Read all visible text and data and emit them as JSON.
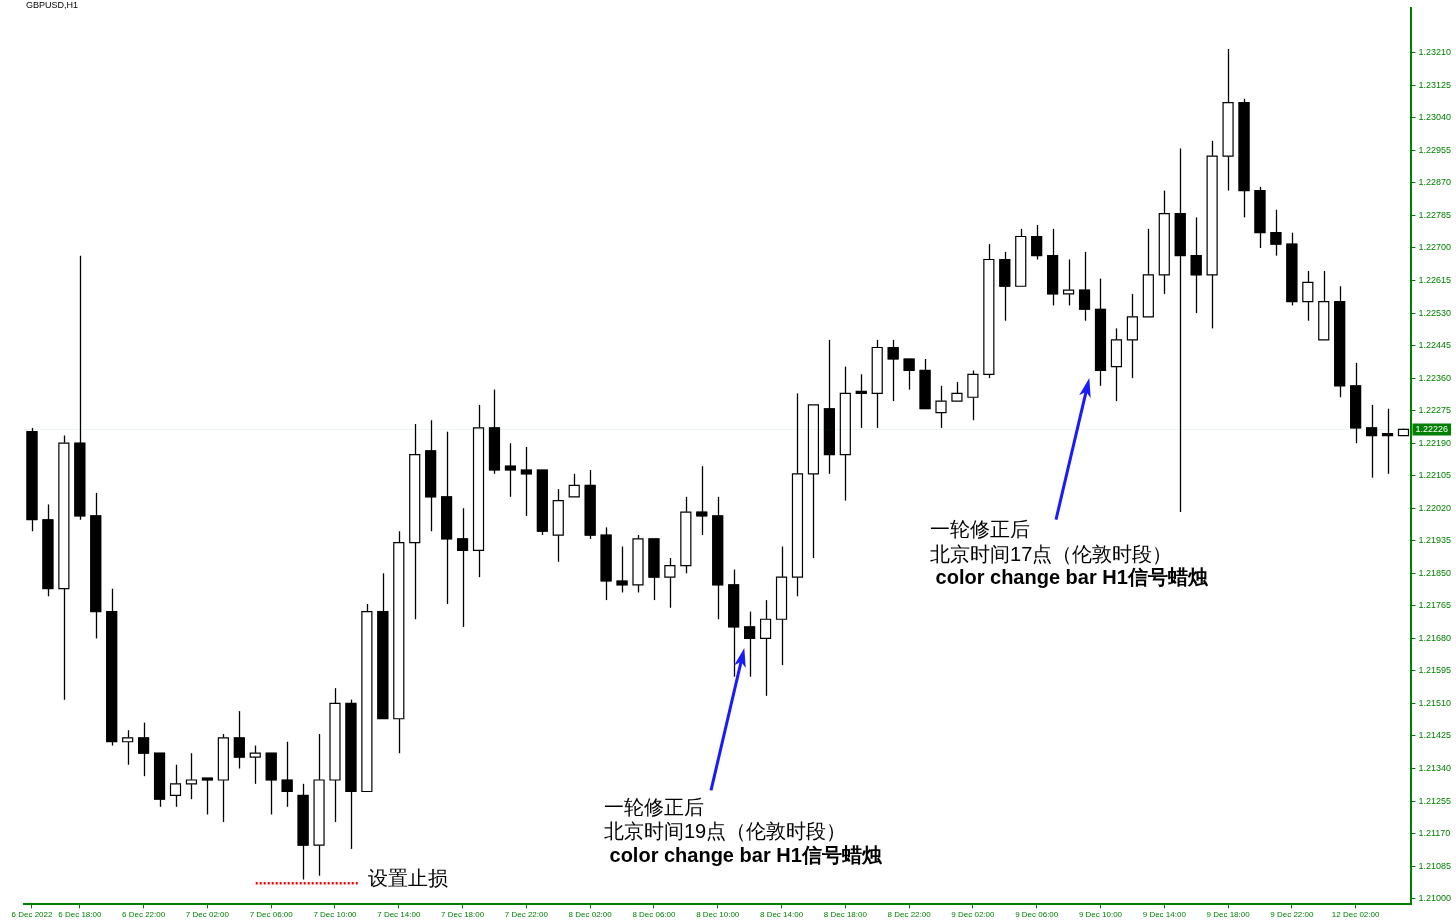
{
  "chart_data": {
    "type": "candlestick",
    "title": "GBPUSD,H1",
    "categories": [
      "6 Dec 2022",
      null,
      null,
      "6 Dec 18:00",
      null,
      null,
      null,
      "6 Dec 22:00",
      null,
      null,
      null,
      "7 Dec 02:00",
      null,
      null,
      null,
      "7 Dec 06:00",
      null,
      null,
      null,
      "7 Dec 10:00",
      null,
      null,
      null,
      "7 Dec 14:00",
      null,
      null,
      null,
      "7 Dec 18:00",
      null,
      null,
      null,
      "7 Dec 22:00",
      null,
      null,
      null,
      "8 Dec 02:00",
      null,
      null,
      null,
      "8 Dec 06:00",
      null,
      null,
      null,
      "8 Dec 10:00",
      null,
      null,
      null,
      "8 Dec 14:00",
      null,
      null,
      null,
      "8 Dec 18:00",
      null,
      null,
      null,
      "8 Dec 22:00",
      null,
      null,
      null,
      "9 Dec 02:00",
      null,
      null,
      null,
      "9 Dec 06:00",
      null,
      null,
      null,
      "9 Dec 10:00",
      null,
      null,
      null,
      "9 Dec 14:00",
      null,
      null,
      null,
      "9 Dec 18:00",
      null,
      null,
      null,
      "9 Dec 22:00",
      null,
      null,
      null,
      "12 Dec 02:00",
      null,
      null,
      null
    ],
    "ohlc": [
      [
        1.2222,
        1.2223,
        1.2196,
        1.2199
      ],
      [
        1.2199,
        1.2203,
        1.2179,
        1.2181
      ],
      [
        1.2181,
        1.2221,
        1.2152,
        1.2219
      ],
      [
        1.2219,
        1.2268,
        1.2199,
        1.22
      ],
      [
        1.22,
        1.2206,
        1.2168,
        1.2175
      ],
      [
        1.2175,
        1.2181,
        1.214,
        1.2141
      ],
      [
        1.2141,
        1.2144,
        1.2135,
        1.2142
      ],
      [
        1.2142,
        1.2146,
        1.2132,
        1.2138
      ],
      [
        1.2138,
        1.2138,
        1.2124,
        1.2126
      ],
      [
        1.2127,
        1.2135,
        1.2124,
        1.213
      ],
      [
        1.213,
        1.2138,
        1.2126,
        1.2131
      ],
      [
        1.2131,
        1.2131,
        1.2122,
        1.2131
      ],
      [
        1.2131,
        1.2143,
        1.212,
        1.2142
      ],
      [
        1.2142,
        1.2149,
        1.2134,
        1.2137
      ],
      [
        1.2137,
        1.214,
        1.213,
        1.2138
      ],
      [
        1.2138,
        1.2138,
        1.2122,
        1.2131
      ],
      [
        1.2131,
        1.2141,
        1.2124,
        1.2128
      ],
      [
        1.2127,
        1.213,
        1.2105,
        1.2114
      ],
      [
        1.2114,
        1.2143,
        1.2106,
        1.2131
      ],
      [
        1.2131,
        1.2155,
        1.212,
        1.2151
      ],
      [
        1.2151,
        1.2152,
        1.2113,
        1.2128
      ],
      [
        1.2128,
        1.2177,
        1.2128,
        1.2175
      ],
      [
        1.2175,
        1.2185,
        1.2147,
        1.2147
      ],
      [
        1.2147,
        1.2196,
        1.2138,
        1.2193
      ],
      [
        1.2193,
        1.2224,
        1.2173,
        1.2216
      ],
      [
        1.2217,
        1.2225,
        1.2196,
        1.2205
      ],
      [
        1.2205,
        1.2222,
        1.2177,
        1.2194
      ],
      [
        1.2194,
        1.2202,
        1.2171,
        1.2191
      ],
      [
        1.2191,
        1.2229,
        1.2184,
        1.2223
      ],
      [
        1.2223,
        1.2233,
        1.2211,
        1.2212
      ],
      [
        1.2213,
        1.2219,
        1.2205,
        1.2212
      ],
      [
        1.2212,
        1.2218,
        1.22,
        1.2211
      ],
      [
        1.2212,
        1.2212,
        1.2195,
        1.2196
      ],
      [
        1.2195,
        1.2207,
        1.2188,
        1.2204
      ],
      [
        1.2205,
        1.2211,
        1.2205,
        1.2208
      ],
      [
        1.2208,
        1.2212,
        1.2194,
        1.2195
      ],
      [
        1.2195,
        1.2197,
        1.2178,
        1.2183
      ],
      [
        1.2183,
        1.2192,
        1.218,
        1.2182
      ],
      [
        1.2182,
        1.2195,
        1.218,
        1.2194
      ],
      [
        1.2194,
        1.2194,
        1.2178,
        1.2184
      ],
      [
        1.2184,
        1.2189,
        1.2176,
        1.2187
      ],
      [
        1.2187,
        1.2205,
        1.2185,
        1.2201
      ],
      [
        1.2201,
        1.2213,
        1.2195,
        1.22
      ],
      [
        1.22,
        1.2205,
        1.2173,
        1.2182
      ],
      [
        1.2182,
        1.2186,
        1.2158,
        1.2171
      ],
      [
        1.2171,
        1.2175,
        1.2158,
        1.2168
      ],
      [
        1.2168,
        1.2178,
        1.2153,
        1.2173
      ],
      [
        1.2173,
        1.2192,
        1.2161,
        1.2184
      ],
      [
        1.2184,
        1.2232,
        1.2179,
        1.2211
      ],
      [
        1.2211,
        1.2229,
        1.2189,
        1.2229
      ],
      [
        1.2228,
        1.2246,
        1.2211,
        1.2216
      ],
      [
        1.2216,
        1.2239,
        1.2204,
        1.2232
      ],
      [
        1.2232,
        1.2237,
        1.2223,
        1.2232
      ],
      [
        1.2232,
        1.2246,
        1.2223,
        1.2244
      ],
      [
        1.2244,
        1.2246,
        1.223,
        1.2241
      ],
      [
        1.2241,
        1.2241,
        1.2233,
        1.2238
      ],
      [
        1.2238,
        1.2241,
        1.2228,
        1.2228
      ],
      [
        1.2227,
        1.2234,
        1.2223,
        1.223
      ],
      [
        1.223,
        1.2235,
        1.223,
        1.2232
      ],
      [
        1.2231,
        1.2238,
        1.2225,
        1.2237
      ],
      [
        1.2237,
        1.2271,
        1.2236,
        1.2267
      ],
      [
        1.2267,
        1.2269,
        1.2251,
        1.226
      ],
      [
        1.226,
        1.2275,
        1.226,
        1.2273
      ],
      [
        1.2273,
        1.2276,
        1.2267,
        1.2268
      ],
      [
        1.2268,
        1.2275,
        1.2255,
        1.2258
      ],
      [
        1.2258,
        1.2267,
        1.2255,
        1.2259
      ],
      [
        1.2259,
        1.2269,
        1.2251,
        1.2254
      ],
      [
        1.2254,
        1.2262,
        1.2234,
        1.2238
      ],
      [
        1.2239,
        1.2249,
        1.223,
        1.2246
      ],
      [
        1.2246,
        1.2258,
        1.2236,
        1.2252
      ],
      [
        1.2252,
        1.2275,
        1.2252,
        1.2263
      ],
      [
        1.2263,
        1.2285,
        1.2258,
        1.2279
      ],
      [
        1.2279,
        1.2296,
        1.2201,
        1.2268
      ],
      [
        1.2268,
        1.2278,
        1.2253,
        1.2263
      ],
      [
        1.2263,
        1.2298,
        1.2249,
        1.2294
      ],
      [
        1.2294,
        1.2322,
        1.2285,
        1.2308
      ],
      [
        1.2308,
        1.2309,
        1.2278,
        1.2285
      ],
      [
        1.2285,
        1.2286,
        1.227,
        1.2274
      ],
      [
        1.2274,
        1.228,
        1.2268,
        1.2271
      ],
      [
        1.2271,
        1.2274,
        1.2255,
        1.2256
      ],
      [
        1.2256,
        1.2264,
        1.2251,
        1.2261
      ],
      [
        1.2246,
        1.2264,
        1.2246,
        1.2256
      ],
      [
        1.2256,
        1.226,
        1.2231,
        1.2234
      ],
      [
        1.2234,
        1.224,
        1.2219,
        1.2223
      ],
      [
        1.2223,
        1.2229,
        1.221,
        1.2221
      ],
      [
        1.2221,
        1.2228,
        1.2211,
        1.2221
      ],
      [
        1.2221,
        1.22228,
        1.2221,
        1.22226
      ]
    ],
    "color": "#000000",
    "colors": [
      "#000000",
      "#000000",
      "#ffffff",
      "#000000",
      "#000000",
      "#000000",
      "#ffffff",
      "#000000",
      "#000000",
      "#ffffff",
      "#ffffff",
      "#000000",
      "#ffffff",
      "#000000",
      "#ffffff",
      "#000000",
      "#000000",
      "#000000",
      "#ffffff",
      "#ffffff",
      "#000000",
      "#ffffff",
      "#000000",
      "#ffffff",
      "#ffffff",
      "#000000",
      "#000000",
      "#000000",
      "#ffffff",
      "#000000",
      "#000000",
      "#000000",
      "#000000",
      "#ffffff",
      "#ffffff",
      "#000000",
      "#000000",
      "#000000",
      "#ffffff",
      "#000000",
      "#ffffff",
      "#ffffff",
      "#000000",
      "#000000",
      "#000000",
      "#000000",
      "#ffffff",
      "#ffffff",
      "#ffffff",
      "#ffffff",
      "#000000",
      "#ffffff",
      "#000000",
      "#ffffff",
      "#000000",
      "#000000",
      "#000000",
      "#ffffff",
      "#ffffff",
      "#ffffff",
      "#ffffff",
      "#000000",
      "#ffffff",
      "#000000",
      "#000000",
      "#ffffff",
      "#000000",
      "#000000",
      "#ffffff",
      "#ffffff",
      "#ffffff",
      "#ffffff",
      "#000000",
      "#000000",
      "#ffffff",
      "#ffffff",
      "#000000",
      "#000000",
      "#000000",
      "#000000",
      "#ffffff",
      "#ffffff",
      "#000000",
      "#000000",
      "#000000",
      "#000000",
      "#ffffff"
    ],
    "ylim": [
      1.20985,
      1.23326
    ],
    "yticks": [
      {
        "value": 1.21,
        "label": "1.21000"
      },
      {
        "value": 1.21085,
        "label": "1.21085"
      },
      {
        "value": 1.2117,
        "label": "1.21170"
      },
      {
        "value": 1.21255,
        "label": "1.21255"
      },
      {
        "value": 1.2134,
        "label": "1.21340"
      },
      {
        "value": 1.21425,
        "label": "1.21425"
      },
      {
        "value": 1.2151,
        "label": "1.21510"
      },
      {
        "value": 1.21595,
        "label": "1.21595"
      },
      {
        "value": 1.2168,
        "label": "1.21680"
      },
      {
        "value": 1.21765,
        "label": "1.21765"
      },
      {
        "value": 1.2185,
        "label": "1.21850"
      },
      {
        "value": 1.21935,
        "label": "1.21935"
      },
      {
        "value": 1.2202,
        "label": "1.22020"
      },
      {
        "value": 1.22105,
        "label": "1.22105"
      },
      {
        "value": 1.2219,
        "label": "1.22190"
      },
      {
        "value": 1.22275,
        "label": "1.22275"
      },
      {
        "value": 1.2236,
        "label": "1.22360"
      },
      {
        "value": 1.22445,
        "label": "1.22445"
      },
      {
        "value": 1.2253,
        "label": "1.22530"
      },
      {
        "value": 1.22615,
        "label": "1.22615"
      },
      {
        "value": 1.227,
        "label": "1.22700"
      },
      {
        "value": 1.22785,
        "label": "1.22785"
      },
      {
        "value": 1.2287,
        "label": "1.22870"
      },
      {
        "value": 1.22955,
        "label": "1.22955"
      },
      {
        "value": 1.2304,
        "label": "1.23040"
      },
      {
        "value": 1.23125,
        "label": "1.23125"
      },
      {
        "value": 1.2321,
        "label": "1.23210"
      }
    ],
    "ref_lines": [
      {
        "axis": "y",
        "value": 1.22226,
        "label": "1.22226",
        "color": "#008000",
        "line_style": "solid"
      },
      {
        "axis": "y",
        "value": 1.2104,
        "label": "设置止损",
        "color": "#ff0000",
        "line_style": "dotted"
      }
    ],
    "annotations": [
      "一轮修正后",
      "北京时间19点（伦敦时段）",
      " color change bar H1信号蜡烛",
      "一轮修正后",
      "北京时间17点（伦敦时段）",
      " color change bar H1信号蜡烛"
    ]
  }
}
